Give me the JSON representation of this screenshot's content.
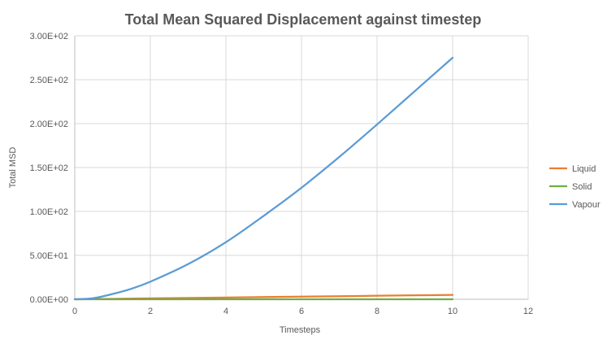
{
  "chart_data": {
    "type": "line",
    "title": "Total Mean Squared Displacement against timestep",
    "xlabel": "Timesteps",
    "ylabel": "Total MSD",
    "xlim": [
      0,
      12
    ],
    "ylim": [
      0,
      300
    ],
    "x_ticks": [
      "0",
      "2",
      "4",
      "6",
      "8",
      "10",
      "12"
    ],
    "y_ticks": [
      "0.00E+00",
      "5.00E+01",
      "1.00E+02",
      "1.50E+02",
      "2.00E+02",
      "2.50E+02",
      "3.00E+02"
    ],
    "grid": "vertical and horizontal major gridlines",
    "legend_position": "right",
    "series": [
      {
        "name": "Liquid",
        "color": "#ED7D31",
        "x": [
          0,
          1,
          2,
          3,
          4,
          5,
          6,
          7,
          8,
          9,
          10
        ],
        "y": [
          0,
          0.5,
          1.0,
          1.5,
          2.0,
          2.5,
          3.0,
          3.5,
          4.0,
          4.5,
          5.0
        ]
      },
      {
        "name": "Solid",
        "color": "#70AD47",
        "x": [
          0,
          1,
          2,
          3,
          4,
          5,
          6,
          7,
          8,
          9,
          10
        ],
        "y": [
          0,
          0.02,
          0.02,
          0.02,
          0.02,
          0.02,
          0.02,
          0.02,
          0.02,
          0.02,
          0.02
        ]
      },
      {
        "name": "Vapour",
        "color": "#5B9BD5",
        "x": [
          0,
          0.5,
          1,
          1.5,
          2,
          3,
          4,
          5,
          6,
          7,
          8,
          9,
          10
        ],
        "y": [
          0,
          1.3,
          6,
          12,
          20,
          40,
          65,
          95,
          127,
          162,
          199,
          237,
          275
        ]
      }
    ]
  }
}
